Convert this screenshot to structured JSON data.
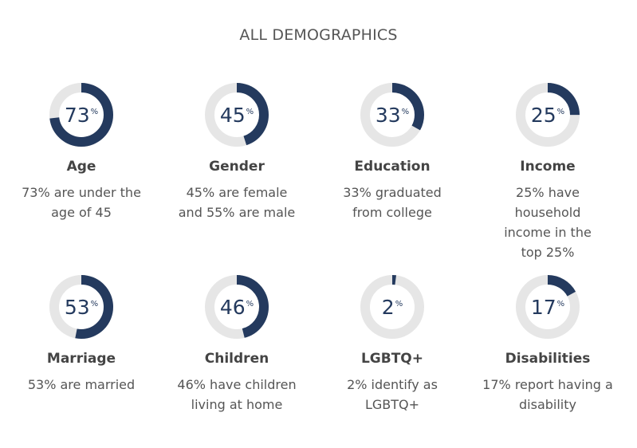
{
  "page_title": "ALL DEMOGRAPHICS",
  "colors": {
    "fill": "#243a5e",
    "track": "#e6e6e6"
  },
  "stats": [
    {
      "value": 73,
      "unit": "%",
      "label": "Age",
      "description": "73% are under the age of 45"
    },
    {
      "value": 45,
      "unit": "%",
      "label": "Gender",
      "description": "45% are female and 55% are male"
    },
    {
      "value": 33,
      "unit": "%",
      "label": "Education",
      "description": "33% graduated from college"
    },
    {
      "value": 25,
      "unit": "%",
      "label": "Income",
      "description": "25% have household income in the top 25%"
    },
    {
      "value": 53,
      "unit": "%",
      "label": "Marriage",
      "description": "53% are married"
    },
    {
      "value": 46,
      "unit": "%",
      "label": "Children",
      "description": "46% have children living at home"
    },
    {
      "value": 2,
      "unit": "%",
      "label": "LGBTQ+",
      "description": "2% identify as LGBTQ+"
    },
    {
      "value": 17,
      "unit": "%",
      "label": "Disabilities",
      "description": "17% report having a disability"
    }
  ]
}
